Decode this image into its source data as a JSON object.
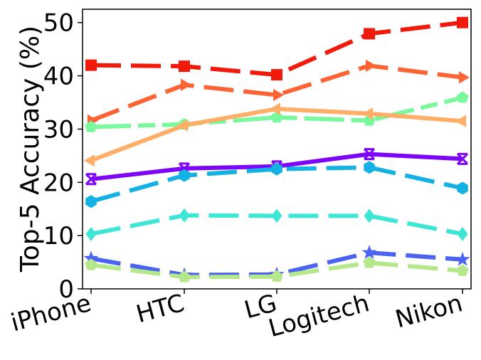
{
  "chart_data": {
    "type": "line",
    "title": "",
    "xlabel": "",
    "ylabel": "Top-5 Accuracy (%)",
    "categories": [
      "iPhone",
      "HTC",
      "LG",
      "Logitech",
      "Nikon"
    ],
    "ylim": [
      0,
      52.5
    ],
    "yticks": [
      0,
      10,
      20,
      30,
      40,
      50
    ],
    "grid": false,
    "legend": "none",
    "series": [
      {
        "values": [
          42.0,
          41.8,
          40.2,
          47.9,
          50.0
        ],
        "color": "#f21a0a",
        "marker": "square",
        "dash": "long"
      },
      {
        "values": [
          31.6,
          38.3,
          36.4,
          41.9,
          39.7
        ],
        "color": "#fd6435",
        "marker": "triangle-right",
        "dash": "long"
      },
      {
        "values": [
          30.4,
          30.9,
          32.2,
          31.6,
          35.9
        ],
        "color": "#7af89c",
        "marker": "pentagon",
        "dash": "mixed"
      },
      {
        "values": [
          24.1,
          30.7,
          33.8,
          32.9,
          31.5
        ],
        "color": "#ffae68",
        "marker": "triangle-left",
        "dash": "solid"
      },
      {
        "values": [
          20.6,
          22.6,
          23.0,
          25.3,
          24.4
        ],
        "color": "#7d05f8",
        "marker": "tri-x",
        "dash": "solid"
      },
      {
        "values": [
          16.4,
          21.3,
          22.5,
          22.8,
          18.9
        ],
        "color": "#14b2e4",
        "marker": "hexagon",
        "dash": "long"
      },
      {
        "values": [
          10.3,
          13.8,
          13.7,
          13.7,
          10.3
        ],
        "color": "#3ee6d6",
        "marker": "diamond",
        "dash": "long"
      },
      {
        "values": [
          5.7,
          2.6,
          2.7,
          6.8,
          5.5
        ],
        "color": "#4a63f0",
        "marker": "star",
        "dash": "long"
      },
      {
        "values": [
          4.5,
          2.2,
          2.3,
          4.9,
          3.4
        ],
        "color": "#b5e88a",
        "marker": "pentagon",
        "dash": "long"
      }
    ]
  }
}
